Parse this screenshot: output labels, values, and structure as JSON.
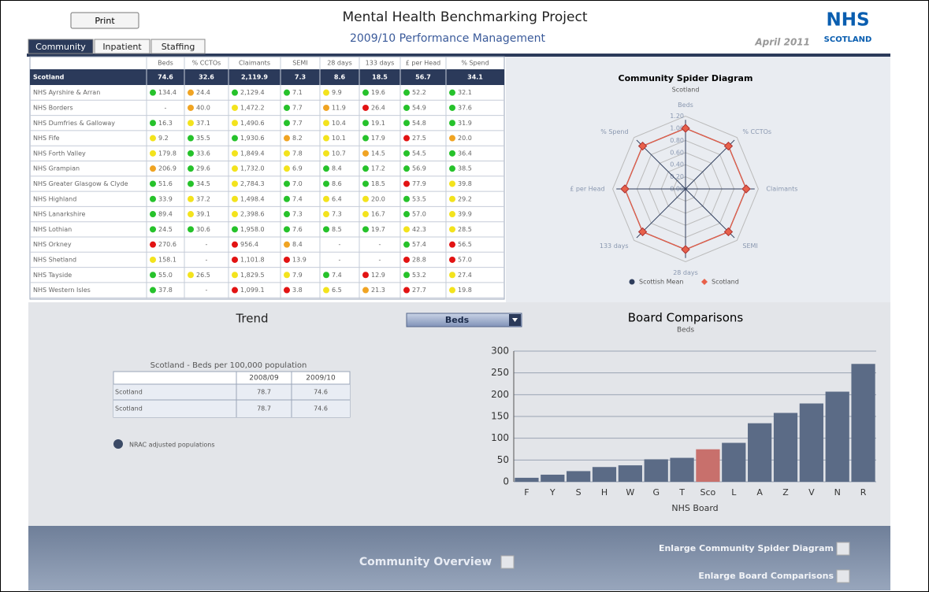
{
  "header": {
    "print": "Print",
    "title": "Mental Health Benchmarking Project",
    "subtitle": "2009/10 Performance Management",
    "date": "April 2011",
    "logo_top": "NHS",
    "logo_bottom": "SCOTLAND"
  },
  "tabs": [
    "Community",
    "Inpatient",
    "Staffing"
  ],
  "table": {
    "columns": [
      "Beds",
      "% CCTOs",
      "Claimants",
      "SEMI",
      "28 days",
      "133 days",
      "£ per Head",
      "% Spend"
    ],
    "scotland_row": {
      "name": "Scotland",
      "values": [
        "74.6",
        "32.6",
        "2,119.9",
        "7.3",
        "8.6",
        "18.5",
        "56.7",
        "34.1"
      ]
    },
    "rows": [
      {
        "name": "NHS Ayrshire & Arran",
        "cells": [
          {
            "value": "134.4",
            "status": "green"
          },
          {
            "value": "24.4",
            "status": "orange"
          },
          {
            "value": "2,129.4",
            "status": "green"
          },
          {
            "value": "7.1",
            "status": "green"
          },
          {
            "value": "9.9",
            "status": "yellow"
          },
          {
            "value": "19.6",
            "status": "green"
          },
          {
            "value": "52.2",
            "status": "green"
          },
          {
            "value": "32.1",
            "status": "green"
          }
        ]
      },
      {
        "name": "NHS Borders",
        "cells": [
          {
            "value": "-"
          },
          {
            "value": "40.0",
            "status": "orange"
          },
          {
            "value": "1,472.2",
            "status": "yellow"
          },
          {
            "value": "7.7",
            "status": "green"
          },
          {
            "value": "11.9",
            "status": "orange"
          },
          {
            "value": "26.4",
            "status": "red"
          },
          {
            "value": "54.9",
            "status": "green"
          },
          {
            "value": "37.6",
            "status": "green"
          }
        ]
      },
      {
        "name": "NHS Dumfries & Galloway",
        "cells": [
          {
            "value": "16.3",
            "status": "green"
          },
          {
            "value": "37.1",
            "status": "yellow"
          },
          {
            "value": "1,490.6",
            "status": "yellow"
          },
          {
            "value": "7.7",
            "status": "green"
          },
          {
            "value": "10.4",
            "status": "yellow"
          },
          {
            "value": "19.1",
            "status": "green"
          },
          {
            "value": "54.8",
            "status": "green"
          },
          {
            "value": "31.9",
            "status": "green"
          }
        ]
      },
      {
        "name": "NHS Fife",
        "cells": [
          {
            "value": "9.2",
            "status": "yellow"
          },
          {
            "value": "35.5",
            "status": "green"
          },
          {
            "value": "1,930.6",
            "status": "green"
          },
          {
            "value": "8.2",
            "status": "orange"
          },
          {
            "value": "10.1",
            "status": "yellow"
          },
          {
            "value": "17.9",
            "status": "green"
          },
          {
            "value": "27.5",
            "status": "red"
          },
          {
            "value": "20.0",
            "status": "orange"
          }
        ]
      },
      {
        "name": "NHS Forth Valley",
        "cells": [
          {
            "value": "179.8",
            "status": "yellow"
          },
          {
            "value": "33.6",
            "status": "green"
          },
          {
            "value": "1,849.4",
            "status": "yellow"
          },
          {
            "value": "7.8",
            "status": "yellow"
          },
          {
            "value": "10.7",
            "status": "yellow"
          },
          {
            "value": "14.5",
            "status": "orange"
          },
          {
            "value": "54.5",
            "status": "green"
          },
          {
            "value": "36.4",
            "status": "green"
          }
        ]
      },
      {
        "name": "NHS Grampian",
        "cells": [
          {
            "value": "206.9",
            "status": "orange"
          },
          {
            "value": "29.6",
            "status": "green"
          },
          {
            "value": "1,732.0",
            "status": "yellow"
          },
          {
            "value": "6.9",
            "status": "yellow"
          },
          {
            "value": "8.4",
            "status": "green"
          },
          {
            "value": "17.2",
            "status": "green"
          },
          {
            "value": "56.9",
            "status": "green"
          },
          {
            "value": "38.5",
            "status": "green"
          }
        ]
      },
      {
        "name": "NHS Greater Glasgow & Clyde",
        "cells": [
          {
            "value": "51.6",
            "status": "green"
          },
          {
            "value": "34.5",
            "status": "green"
          },
          {
            "value": "2,784.3",
            "status": "yellow"
          },
          {
            "value": "7.0",
            "status": "green"
          },
          {
            "value": "8.6",
            "status": "green"
          },
          {
            "value": "18.5",
            "status": "green"
          },
          {
            "value": "77.9",
            "status": "red"
          },
          {
            "value": "39.8",
            "status": "yellow"
          }
        ]
      },
      {
        "name": "NHS Highland",
        "cells": [
          {
            "value": "33.9",
            "status": "green"
          },
          {
            "value": "37.2",
            "status": "yellow"
          },
          {
            "value": "1,498.4",
            "status": "yellow"
          },
          {
            "value": "7.4",
            "status": "green"
          },
          {
            "value": "6.4",
            "status": "yellow"
          },
          {
            "value": "20.0",
            "status": "yellow"
          },
          {
            "value": "53.5",
            "status": "green"
          },
          {
            "value": "29.2",
            "status": "yellow"
          }
        ]
      },
      {
        "name": "NHS Lanarkshire",
        "cells": [
          {
            "value": "89.4",
            "status": "green"
          },
          {
            "value": "39.1",
            "status": "yellow"
          },
          {
            "value": "2,398.6",
            "status": "yellow"
          },
          {
            "value": "7.3",
            "status": "green"
          },
          {
            "value": "7.3",
            "status": "yellow"
          },
          {
            "value": "16.7",
            "status": "yellow"
          },
          {
            "value": "57.0",
            "status": "green"
          },
          {
            "value": "39.9",
            "status": "yellow"
          }
        ]
      },
      {
        "name": "NHS Lothian",
        "cells": [
          {
            "value": "24.5",
            "status": "green"
          },
          {
            "value": "30.6",
            "status": "green"
          },
          {
            "value": "1,958.0",
            "status": "green"
          },
          {
            "value": "7.6",
            "status": "green"
          },
          {
            "value": "8.5",
            "status": "green"
          },
          {
            "value": "19.7",
            "status": "green"
          },
          {
            "value": "42.3",
            "status": "yellow"
          },
          {
            "value": "28.5",
            "status": "yellow"
          }
        ]
      },
      {
        "name": "NHS Orkney",
        "cells": [
          {
            "value": "270.6",
            "status": "red"
          },
          {
            "value": "-"
          },
          {
            "value": "956.4",
            "status": "red"
          },
          {
            "value": "8.4",
            "status": "orange"
          },
          {
            "value": "-"
          },
          {
            "value": "-"
          },
          {
            "value": "57.4",
            "status": "green"
          },
          {
            "value": "56.5",
            "status": "red"
          }
        ]
      },
      {
        "name": "NHS Shetland",
        "cells": [
          {
            "value": "158.1",
            "status": "yellow"
          },
          {
            "value": "-"
          },
          {
            "value": "1,101.8",
            "status": "red"
          },
          {
            "value": "13.9",
            "status": "red"
          },
          {
            "value": "-"
          },
          {
            "value": "-"
          },
          {
            "value": "28.8",
            "status": "red"
          },
          {
            "value": "57.0",
            "status": "red"
          }
        ]
      },
      {
        "name": "NHS Tayside",
        "cells": [
          {
            "value": "55.0",
            "status": "green"
          },
          {
            "value": "26.5",
            "status": "yellow"
          },
          {
            "value": "1,829.5",
            "status": "yellow"
          },
          {
            "value": "7.9",
            "status": "yellow"
          },
          {
            "value": "7.4",
            "status": "green"
          },
          {
            "value": "12.9",
            "status": "red"
          },
          {
            "value": "53.2",
            "status": "green"
          },
          {
            "value": "27.4",
            "status": "yellow"
          }
        ]
      },
      {
        "name": "NHS Western Isles",
        "cells": [
          {
            "value": "37.8",
            "status": "green"
          },
          {
            "value": "-"
          },
          {
            "value": "1,099.1",
            "status": "red"
          },
          {
            "value": "3.8",
            "status": "red"
          },
          {
            "value": "6.5",
            "status": "yellow"
          },
          {
            "value": "21.3",
            "status": "orange"
          },
          {
            "value": "27.7",
            "status": "red"
          },
          {
            "value": "19.8",
            "status": "yellow"
          }
        ]
      }
    ]
  },
  "trend": {
    "title": "Trend",
    "dropdown": "Beds",
    "caption": "Scotland - Beds per 100,000 population",
    "headers": [
      "2008/09",
      "2009/10"
    ],
    "rows": [
      [
        "Scotland",
        "78.7",
        "74.6"
      ],
      [
        "Scotland",
        "78.7",
        "74.6"
      ]
    ],
    "legend": "NRAC adjusted populations"
  },
  "chart_data": [
    {
      "type": "radar",
      "title": "Community Spider Diagram",
      "subtitle": "Scotland",
      "axes": [
        "Beds",
        "% CCTOs",
        "Claimants",
        "SEMI",
        "28 days",
        "133 days",
        "£ per Head",
        "% Spend"
      ],
      "rlim": [
        0,
        1.2
      ],
      "rticks": [
        {
          "value": 0,
          "label": "0.00"
        },
        {
          "value": 0.2,
          "label": "0.20"
        },
        {
          "value": 0.4,
          "label": "0.40"
        },
        {
          "value": 0.6,
          "label": "0.60"
        },
        {
          "value": 0.8,
          "label": "0.80"
        },
        {
          "value": 1,
          "label": "1.00"
        },
        {
          "value": 1.2,
          "label": "1.20"
        }
      ],
      "series": [
        {
          "name": "Scottish Mean",
          "color": "#2e3d5c",
          "marker": "circle",
          "values": [
            1,
            1,
            1,
            1,
            1,
            1,
            1,
            1
          ]
        },
        {
          "name": "Scotland",
          "color": "#e8604a",
          "marker": "diamond",
          "values": [
            1,
            1,
            1,
            1,
            1,
            1,
            1,
            1
          ]
        }
      ]
    },
    {
      "type": "bar",
      "title": "Board Comparisons",
      "subtitle": "Beds",
      "x_label": "NHS Board",
      "categories": [
        "F",
        "Y",
        "S",
        "H",
        "W",
        "G",
        "T",
        "Sco",
        "L",
        "A",
        "Z",
        "V",
        "N",
        "R"
      ],
      "values": [
        9.2,
        16.3,
        24.5,
        33.9,
        37.8,
        51.6,
        55.0,
        74.6,
        89.4,
        134.4,
        158.1,
        179.8,
        206.9,
        270.6
      ],
      "colors": [
        "#5b6b86",
        "#5b6b86",
        "#5b6b86",
        "#5b6b86",
        "#5b6b86",
        "#5b6b86",
        "#5b6b86",
        "#c8706c",
        "#5b6b86",
        "#5b6b86",
        "#5b6b86",
        "#5b6b86",
        "#5b6b86",
        "#5b6b86"
      ],
      "ylim": [
        0,
        300
      ],
      "yticks": [
        0,
        50,
        100,
        150,
        200,
        250,
        300
      ],
      "grid": true
    }
  ],
  "footer": {
    "overview": "Community Overview",
    "enlarge_spider": "Enlarge Community Spider Diagram",
    "enlarge_board": "Enlarge Board Comparisons"
  }
}
